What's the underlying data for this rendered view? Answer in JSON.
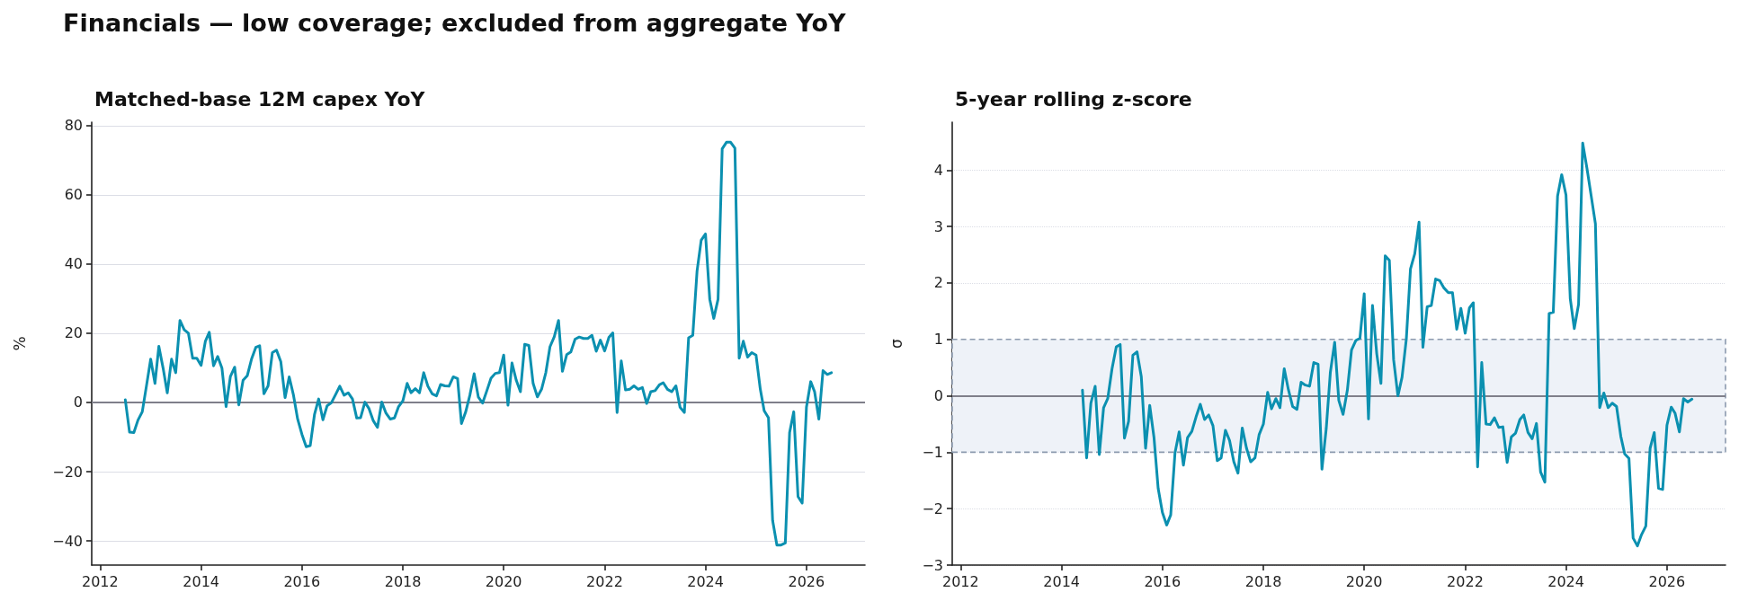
{
  "chart_data": [
    {
      "type": "line",
      "title": "Matched-base 12M capex YoY",
      "ylabel": "%",
      "annotations": [
        "Financials — low coverage; excluded from aggregate YoY"
      ],
      "x": [
        "2012-07",
        "2012-08",
        "2012-09",
        "2012-10",
        "2012-11",
        "2012-12",
        "2013-01",
        "2013-02",
        "2013-03",
        "2013-04",
        "2013-05",
        "2013-06",
        "2013-07",
        "2013-08",
        "2013-09",
        "2013-10",
        "2013-11",
        "2013-12",
        "2014-01",
        "2014-02",
        "2014-03",
        "2014-04",
        "2014-05",
        "2014-06",
        "2014-07",
        "2014-08",
        "2014-09",
        "2014-10",
        "2014-11",
        "2014-12",
        "2015-01",
        "2015-02",
        "2015-03",
        "2015-04",
        "2015-05",
        "2015-06",
        "2015-07",
        "2015-08",
        "2015-09",
        "2015-10",
        "2015-11",
        "2015-12",
        "2016-01",
        "2016-02",
        "2016-03",
        "2016-04",
        "2016-05",
        "2016-06",
        "2016-07",
        "2016-08",
        "2016-09",
        "2016-10",
        "2016-11",
        "2016-12",
        "2017-01",
        "2017-02",
        "2017-03",
        "2017-04",
        "2017-05",
        "2017-06",
        "2017-07",
        "2017-08",
        "2017-09",
        "2017-10",
        "2017-11",
        "2017-12",
        "2018-01",
        "2018-02",
        "2018-03",
        "2018-04",
        "2018-05",
        "2018-06",
        "2018-07",
        "2018-08",
        "2018-09",
        "2018-10",
        "2018-11",
        "2018-12",
        "2019-01",
        "2019-02",
        "2019-03",
        "2019-04",
        "2019-05",
        "2019-06",
        "2019-07",
        "2019-08",
        "2019-09",
        "2019-10",
        "2019-11",
        "2019-12",
        "2020-01",
        "2020-02",
        "2020-03",
        "2020-04",
        "2020-05",
        "2020-06",
        "2020-07",
        "2020-08",
        "2020-09",
        "2020-10",
        "2020-11",
        "2020-12",
        "2021-01",
        "2021-02",
        "2021-03",
        "2021-04",
        "2021-05",
        "2021-06",
        "2021-07",
        "2021-08",
        "2021-09",
        "2021-10",
        "2021-11",
        "2021-12",
        "2022-01",
        "2022-02",
        "2022-03",
        "2022-04",
        "2022-05",
        "2022-06",
        "2022-07",
        "2022-08",
        "2022-09",
        "2022-10",
        "2022-11",
        "2022-12",
        "2023-01",
        "2023-02",
        "2023-03",
        "2023-04",
        "2023-05",
        "2023-06",
        "2023-07",
        "2023-08",
        "2023-09",
        "2023-10",
        "2023-11",
        "2023-12",
        "2024-01",
        "2024-02",
        "2024-03",
        "2024-04",
        "2024-05",
        "2024-06",
        "2024-07",
        "2024-08",
        "2024-09",
        "2024-10",
        "2024-11",
        "2024-12",
        "2025-01",
        "2025-02",
        "2025-03",
        "2025-04",
        "2025-05",
        "2025-06",
        "2025-07",
        "2025-08",
        "2025-09",
        "2025-10",
        "2025-11",
        "2025-12",
        "2026-01",
        "2026-02",
        "2026-03",
        "2026-04",
        "2026-05",
        "2026-06",
        "2026-07"
      ],
      "series": [
        {
          "color": "#0b90b0",
          "values": [
            0.8,
            -8.6,
            -8.7,
            -5.1,
            -2.7,
            4.7,
            12.5,
            5.5,
            16.2,
            9.9,
            2.8,
            12.5,
            8.6,
            23.7,
            21,
            20,
            12.8,
            12.8,
            10.7,
            17.7,
            20.3,
            10.6,
            13.3,
            9.9,
            -1.2,
            7.5,
            10.2,
            -0.7,
            6.4,
            7.7,
            12.5,
            15.9,
            16.4,
            2.5,
            4.8,
            14.4,
            15.1,
            11.8,
            1.4,
            7.4,
            2.1,
            -4.8,
            -9.2,
            -12.8,
            -12.5,
            -3.5,
            1,
            -5,
            -1,
            -0.1,
            2.3,
            4.7,
            2.1,
            2.8,
            1,
            -4.5,
            -4.4,
            0.1,
            -1.8,
            -5.3,
            -7.2,
            0.1,
            -3.1,
            -4.8,
            -4.5,
            -1.2,
            0.5,
            5.5,
            2.8,
            4,
            2.8,
            8.6,
            4.7,
            2.5,
            1.9,
            5.2,
            4.8,
            4.7,
            7.4,
            6.9,
            -6.1,
            -2.7,
            2.1,
            8.3,
            1.6,
            -0.2,
            3.4,
            7,
            8.4,
            8.6,
            13.7,
            -0.8,
            11.4,
            6.4,
            3.1,
            16.8,
            16.5,
            5.5,
            1.6,
            3.8,
            8.6,
            16.1,
            19,
            23.7,
            9,
            13.8,
            14.6,
            18.3,
            18.9,
            18.5,
            18.5,
            19.4,
            14.8,
            18,
            14.9,
            18.8,
            20.1,
            -2.9,
            12,
            3.6,
            3.8,
            4.8,
            3.8,
            4.3,
            -0.3,
            3.1,
            3.4,
            5.1,
            5.7,
            3.8,
            3.1,
            4.8,
            -1.4,
            -2.9,
            18.7,
            19.4,
            38,
            46.9,
            48.7,
            29.8,
            24.3,
            29.8,
            73.3,
            75.2,
            75.2,
            73.5,
            12.8,
            17.7,
            13.1,
            14.4,
            13.7,
            3.8,
            -2.4,
            -4.4,
            -34.1,
            -41.2,
            -41.2,
            -40.6,
            -8.7,
            -2.7,
            -27.2,
            -29.1,
            -1.4,
            6,
            3.1,
            -4.8,
            9.2,
            8.1,
            8.6
          ]
        }
      ],
      "xlim": [
        "2011-11",
        "2027-03"
      ],
      "xticks": [
        "2012",
        "2014",
        "2016",
        "2018",
        "2020",
        "2022",
        "2024",
        "2026"
      ],
      "ylim": [
        -47,
        81
      ],
      "yticks": [
        {
          "value": -40,
          "label": "−40"
        },
        {
          "value": -20,
          "label": "−20"
        },
        0,
        20,
        40,
        60,
        80
      ],
      "ref_lines": [
        {
          "axis": "y",
          "value": 0,
          "color": "#7f7f8a"
        }
      ],
      "grid": "y",
      "marker": "none",
      "line_style": "solid"
    },
    {
      "type": "line",
      "title": "5-year rolling z-score",
      "ylabel": "σ",
      "x": [
        "2014-06",
        "2014-07",
        "2014-08",
        "2014-09",
        "2014-10",
        "2014-11",
        "2014-12",
        "2015-01",
        "2015-02",
        "2015-03",
        "2015-04",
        "2015-05",
        "2015-06",
        "2015-07",
        "2015-08",
        "2015-09",
        "2015-10",
        "2015-11",
        "2015-12",
        "2016-01",
        "2016-02",
        "2016-03",
        "2016-04",
        "2016-05",
        "2016-06",
        "2016-07",
        "2016-08",
        "2016-09",
        "2016-10",
        "2016-11",
        "2016-12",
        "2017-01",
        "2017-02",
        "2017-03",
        "2017-04",
        "2017-05",
        "2017-06",
        "2017-07",
        "2017-08",
        "2017-09",
        "2017-10",
        "2017-11",
        "2017-12",
        "2018-01",
        "2018-02",
        "2018-03",
        "2018-04",
        "2018-05",
        "2018-06",
        "2018-07",
        "2018-08",
        "2018-09",
        "2018-10",
        "2018-11",
        "2018-12",
        "2019-01",
        "2019-02",
        "2019-03",
        "2019-04",
        "2019-05",
        "2019-06",
        "2019-07",
        "2019-08",
        "2019-09",
        "2019-10",
        "2019-11",
        "2019-12",
        "2020-01",
        "2020-02",
        "2020-03",
        "2020-04",
        "2020-05",
        "2020-06",
        "2020-07",
        "2020-08",
        "2020-09",
        "2020-10",
        "2020-11",
        "2020-12",
        "2021-01",
        "2021-02",
        "2021-03",
        "2021-04",
        "2021-05",
        "2021-06",
        "2021-07",
        "2021-08",
        "2021-09",
        "2021-10",
        "2021-11",
        "2021-12",
        "2022-01",
        "2022-02",
        "2022-03",
        "2022-04",
        "2022-05",
        "2022-06",
        "2022-07",
        "2022-08",
        "2022-09",
        "2022-10",
        "2022-11",
        "2022-12",
        "2023-01",
        "2023-02",
        "2023-03",
        "2023-04",
        "2023-05",
        "2023-06",
        "2023-07",
        "2023-08",
        "2023-09",
        "2023-10",
        "2023-11",
        "2023-12",
        "2024-01",
        "2024-02",
        "2024-03",
        "2024-04",
        "2024-05",
        "2024-06",
        "2024-07",
        "2024-08",
        "2024-09",
        "2024-10",
        "2024-11",
        "2024-12",
        "2025-01",
        "2025-02",
        "2025-03",
        "2025-04",
        "2025-05",
        "2025-06",
        "2025-07",
        "2025-08",
        "2025-09",
        "2025-10",
        "2025-11",
        "2025-12",
        "2026-01",
        "2026-02",
        "2026-03",
        "2026-04",
        "2026-05",
        "2026-06",
        "2026-07"
      ],
      "series": [
        {
          "color": "#0b90b0",
          "values": [
            0.1,
            -1.1,
            -0.13,
            0.17,
            -1.04,
            -0.21,
            -0.05,
            0.48,
            0.87,
            0.91,
            -0.75,
            -0.45,
            0.72,
            0.78,
            0.34,
            -0.93,
            -0.17,
            -0.74,
            -1.64,
            -2.07,
            -2.29,
            -2.11,
            -1.01,
            -0.64,
            -1.23,
            -0.74,
            -0.63,
            -0.37,
            -0.15,
            -0.42,
            -0.34,
            -0.53,
            -1.15,
            -1.1,
            -0.61,
            -0.79,
            -1.17,
            -1.37,
            -0.57,
            -0.93,
            -1.17,
            -1.1,
            -0.69,
            -0.5,
            0.06,
            -0.23,
            -0.05,
            -0.21,
            0.48,
            0.11,
            -0.19,
            -0.24,
            0.24,
            0.19,
            0.17,
            0.59,
            0.56,
            -1.3,
            -0.58,
            0.42,
            0.95,
            -0.08,
            -0.33,
            0.1,
            0.81,
            0.98,
            1.02,
            1.81,
            -0.41,
            1.6,
            0.74,
            0.22,
            2.48,
            2.4,
            0.64,
            0,
            0.33,
            1.01,
            2.25,
            2.52,
            3.08,
            0.86,
            1.58,
            1.6,
            2.07,
            2.04,
            1.91,
            1.83,
            1.83,
            1.18,
            1.55,
            1.11,
            1.56,
            1.65,
            -1.26,
            0.59,
            -0.5,
            -0.51,
            -0.39,
            -0.56,
            -0.55,
            -1.18,
            -0.73,
            -0.66,
            -0.42,
            -0.34,
            -0.65,
            -0.76,
            -0.49,
            -1.35,
            -1.53,
            1.46,
            1.48,
            3.54,
            3.92,
            3.56,
            1.72,
            1.19,
            1.62,
            4.48,
            4.03,
            3.55,
            3.05,
            -0.21,
            0.05,
            -0.21,
            -0.13,
            -0.19,
            -0.72,
            -1.03,
            -1.11,
            -2.52,
            -2.66,
            -2.46,
            -2.31,
            -0.93,
            -0.65,
            -1.64,
            -1.66,
            -0.52,
            -0.2,
            -0.31,
            -0.64,
            -0.05,
            -0.11,
            -0.06
          ]
        }
      ],
      "xlim": [
        "2011-11",
        "2027-03"
      ],
      "xticks": [
        "2012",
        "2014",
        "2016",
        "2018",
        "2020",
        "2022",
        "2024",
        "2026"
      ],
      "ylim": [
        -3,
        4.85
      ],
      "yticks": [
        {
          "value": -3,
          "label": "−3"
        },
        {
          "value": -2,
          "label": "−2"
        },
        {
          "value": -1,
          "label": "−1"
        },
        0,
        1,
        2,
        3,
        4
      ],
      "bands": [
        {
          "axis": "y",
          "from": -1,
          "to": 1,
          "color": "#eef2f8"
        }
      ],
      "ref_lines": [
        {
          "axis": "y",
          "value": 0,
          "color": "#7f7f8a"
        }
      ],
      "grid": "y",
      "marker": "none",
      "line_style": "solid"
    }
  ]
}
